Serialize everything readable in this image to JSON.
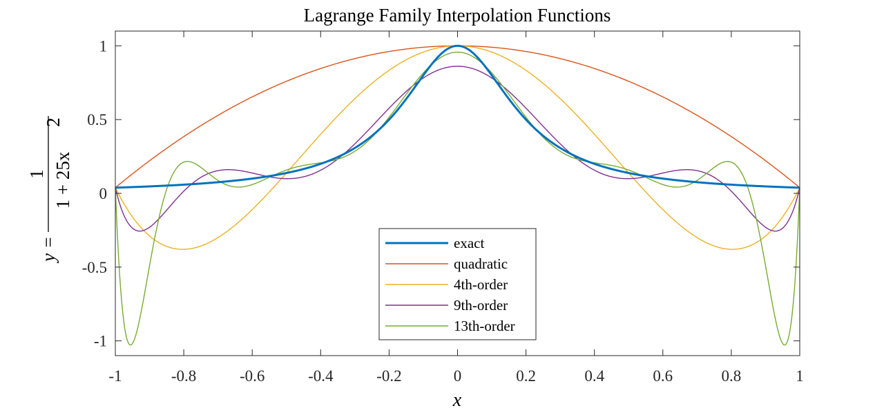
{
  "chart_data": {
    "type": "line",
    "title": "Lagrange Family Interpolation Functions",
    "xlabel": "x",
    "ylabel": {
      "lhs": "y =",
      "numerator": "1",
      "denominator": "1 + 25x",
      "exponent": "2"
    },
    "xlim": [
      -1,
      1
    ],
    "ylim": [
      -1.1,
      1.1
    ],
    "xticks": [
      -1,
      -0.8,
      -0.6,
      -0.4,
      -0.2,
      0,
      0.2,
      0.4,
      0.6,
      0.8,
      1
    ],
    "xtick_labels": [
      "-1",
      "-0.8",
      "-0.6",
      "-0.4",
      "-0.2",
      "0",
      "0.2",
      "0.4",
      "0.6",
      "0.8",
      "1"
    ],
    "yticks": [
      -1,
      -0.5,
      0,
      0.5,
      1
    ],
    "ytick_labels": [
      "-1",
      "-0.5",
      "0",
      "0.5",
      "1"
    ],
    "grid": false,
    "legend_position": "bottom-center",
    "series": [
      {
        "name": "exact",
        "color": "#0072BD",
        "function": "runge",
        "degree": 0
      },
      {
        "name": "quadratic",
        "color": "#D95319",
        "function": "lagrange",
        "degree": 2
      },
      {
        "name": "4th-order",
        "color": "#EDB120",
        "function": "lagrange",
        "degree": 4
      },
      {
        "name": "9th-order",
        "color": "#7E2F8E",
        "function": "lagrange",
        "degree": 9
      },
      {
        "name": "13th-order",
        "color": "#77AC30",
        "function": "lagrange",
        "degree": 13
      }
    ]
  }
}
